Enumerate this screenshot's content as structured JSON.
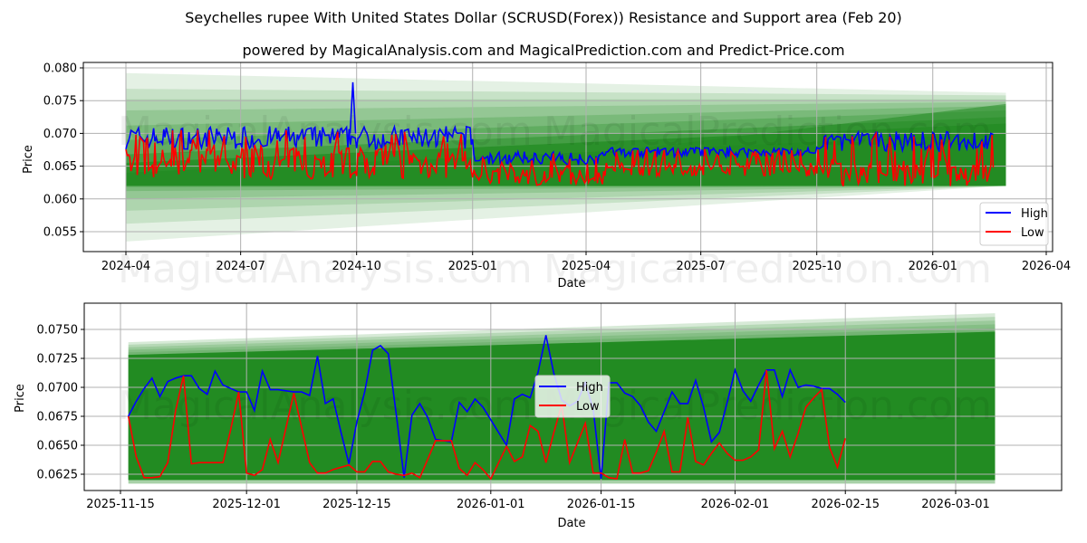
{
  "header": {
    "title": "Seychelles rupee With United States Dollar (SCRUSD(Forex)) Resistance and Support area (Feb 20)",
    "subtitle": "powered by MagicalAnalysis.com and MagicalPrediction.com and Predict-Price.com"
  },
  "watermarks": [
    "MagicalAnalysis.com",
    "MagicalPrediction.com"
  ],
  "colors": {
    "high": "#0000ff",
    "low": "#ff0000",
    "band": "#228b22",
    "grid": "#b0b0b0"
  },
  "chart_data": [
    {
      "type": "line",
      "title": "",
      "xlabel": "Date",
      "ylabel": "Price",
      "ylim": [
        0.0522,
        0.0807
      ],
      "yticks": [
        "0.055",
        "0.060",
        "0.065",
        "0.070",
        "0.075",
        "0.080"
      ],
      "xticks": [
        "2024-04",
        "2024-07",
        "2024-10",
        "2025-01",
        "2025-04",
        "2025-07",
        "2025-10",
        "2026-01",
        "2026-04"
      ],
      "grid": true,
      "legend": {
        "position": "lower right",
        "entries": [
          "High",
          "Low"
        ]
      },
      "x_range": [
        "2024-04-01",
        "2026-02-18"
      ],
      "series": [
        {
          "name": "High",
          "color": "#0000ff",
          "summary": {
            "start": 0.0695,
            "peak": 0.0778,
            "peak_date": "2024-09-28",
            "end": 0.0688,
            "typical_range": [
              0.065,
              0.072
            ]
          }
        },
        {
          "name": "Low",
          "color": "#ff0000",
          "summary": {
            "start": 0.0688,
            "min": 0.0619,
            "end": 0.0657,
            "typical_range": [
              0.0625,
              0.07
            ]
          }
        }
      ],
      "support_resistance_band": {
        "x_start": "2024-04-01",
        "x_end": "2026-02-28",
        "outer_top_start": 0.0792,
        "outer_top_end": 0.0765,
        "outer_bottom_start": 0.0535,
        "outer_bottom_end": 0.062,
        "core_top": 0.0655,
        "core_bottom": 0.062
      }
    },
    {
      "type": "line",
      "title": "",
      "xlabel": "Date",
      "ylabel": "Price",
      "ylim": [
        0.0611,
        0.0772
      ],
      "yticks": [
        "0.0625",
        "0.0650",
        "0.0675",
        "0.0700",
        "0.0725",
        "0.0750"
      ],
      "xticks": [
        "2025-11-15",
        "2025-12-01",
        "2025-12-15",
        "2026-01-01",
        "2026-01-15",
        "2026-02-01",
        "2026-02-15",
        "2026-03-01"
      ],
      "grid": true,
      "legend": {
        "position": "center",
        "entries": [
          "High",
          "Low"
        ]
      },
      "x_start": "2025-11-16",
      "series": [
        {
          "name": "High",
          "color": "#0000ff",
          "values": [
            0.0675,
            0.0688,
            0.0699,
            0.0708,
            0.0692,
            0.0705,
            0.0708,
            0.071,
            0.071,
            0.0699,
            0.0694,
            0.0714,
            0.0702,
            0.0699,
            0.0696,
            0.0696,
            0.068,
            0.0714,
            0.0698,
            0.0698,
            0.0697,
            0.0696,
            0.0696,
            0.0693,
            0.0727,
            0.0686,
            0.069,
            0.0661,
            0.0634,
            0.067,
            0.0696,
            0.0732,
            0.0736,
            0.0729,
            0.0677,
            0.0622,
            0.0676,
            0.0686,
            0.0674,
            0.0655,
            0.0654,
            0.0653,
            0.0687,
            0.0679,
            0.069,
            0.0683,
            0.0672,
            0.0661,
            0.065,
            0.069,
            0.0694,
            0.0691,
            0.0713,
            0.0745,
            0.0712,
            0.0689,
            0.0684,
            0.0688,
            0.0704,
            0.0681,
            0.0621,
            0.0704,
            0.0704,
            0.0695,
            0.0692,
            0.0684,
            0.067,
            0.0662,
            0.0679,
            0.0696,
            0.0686,
            0.0686,
            0.0706,
            0.0683,
            0.0653,
            0.0661,
            0.0687,
            0.0715,
            0.0697,
            0.0688,
            0.0702,
            0.0715,
            0.0715,
            0.0692,
            0.0715,
            0.07,
            0.0702,
            0.0701,
            0.0699,
            0.0699,
            0.0694,
            0.0687
          ]
        },
        {
          "name": "Low",
          "color": "#ff0000",
          "values": [
            0.0675,
            0.064,
            0.0622,
            0.0622,
            0.0623,
            0.0635,
            0.068,
            0.071,
            0.0634,
            0.0635,
            0.0635,
            0.0635,
            0.0635,
            0.0664,
            0.0696,
            0.0626,
            0.0624,
            0.0629,
            0.0655,
            0.0635,
            0.0665,
            0.0695,
            0.0665,
            0.0635,
            0.0626,
            0.0626,
            0.0629,
            0.0631,
            0.0633,
            0.0627,
            0.0627,
            0.0636,
            0.0636,
            0.0627,
            0.0625,
            0.0624,
            0.0626,
            0.0622,
            0.0638,
            0.0654,
            0.0654,
            0.0654,
            0.063,
            0.0624,
            0.0635,
            0.0629,
            0.0621,
            0.0635,
            0.0649,
            0.0636,
            0.064,
            0.0667,
            0.0662,
            0.0635,
            0.0661,
            0.0685,
            0.0635,
            0.0652,
            0.0669,
            0.0626,
            0.0626,
            0.0622,
            0.0621,
            0.0655,
            0.0626,
            0.0626,
            0.0628,
            0.0644,
            0.0662,
            0.0627,
            0.0627,
            0.0674,
            0.0636,
            0.0633,
            0.0643,
            0.0652,
            0.0643,
            0.0637,
            0.0637,
            0.064,
            0.0646,
            0.0715,
            0.0647,
            0.0662,
            0.064,
            0.066,
            0.0683,
            0.0691,
            0.0698,
            0.0648,
            0.0631,
            0.0656
          ]
        }
      ],
      "support_resistance_band": {
        "x_start": "2025-11-16",
        "x_end": "2026-03-06",
        "top_start": 0.0739,
        "top_end": 0.0764,
        "solid_top_start": 0.0728,
        "solid_top_end": 0.0748,
        "bottom": 0.062
      }
    }
  ]
}
